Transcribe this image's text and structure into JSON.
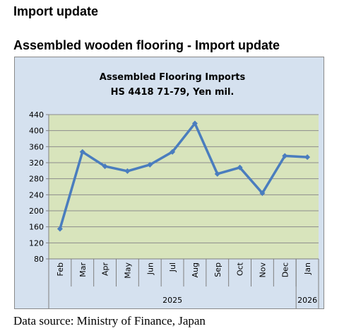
{
  "page": {
    "heading": "Import update",
    "subheading": "Assembled wooden flooring - Import update",
    "source": "Data source: Ministry of Finance, Japan"
  },
  "chart_data": {
    "type": "line",
    "title_lines": [
      "Assembled Flooring Imports",
      "HS 4418 71-79, Yen mil."
    ],
    "categories": [
      "Feb",
      "Mar",
      "Apr",
      "May",
      "Jun",
      "Jul",
      "Aug",
      "Sep",
      "Oct",
      "Nov",
      "Dec",
      "Jan"
    ],
    "year_groups": [
      {
        "label": "2025",
        "count": 11
      },
      {
        "label": "2026",
        "count": 1
      }
    ],
    "values": [
      155,
      347,
      311,
      299,
      315,
      347,
      418,
      292,
      308,
      244,
      337,
      334
    ],
    "ylim": [
      80,
      440
    ],
    "yticks": [
      80,
      120,
      160,
      200,
      240,
      280,
      320,
      360,
      400,
      440
    ],
    "grid": true,
    "legend": "none",
    "colors": {
      "line": "#4a7dbe",
      "plot_bg": "#d8e4bc",
      "frame_bg": "#d5e1ef",
      "grid": "#8c8c8c"
    }
  }
}
